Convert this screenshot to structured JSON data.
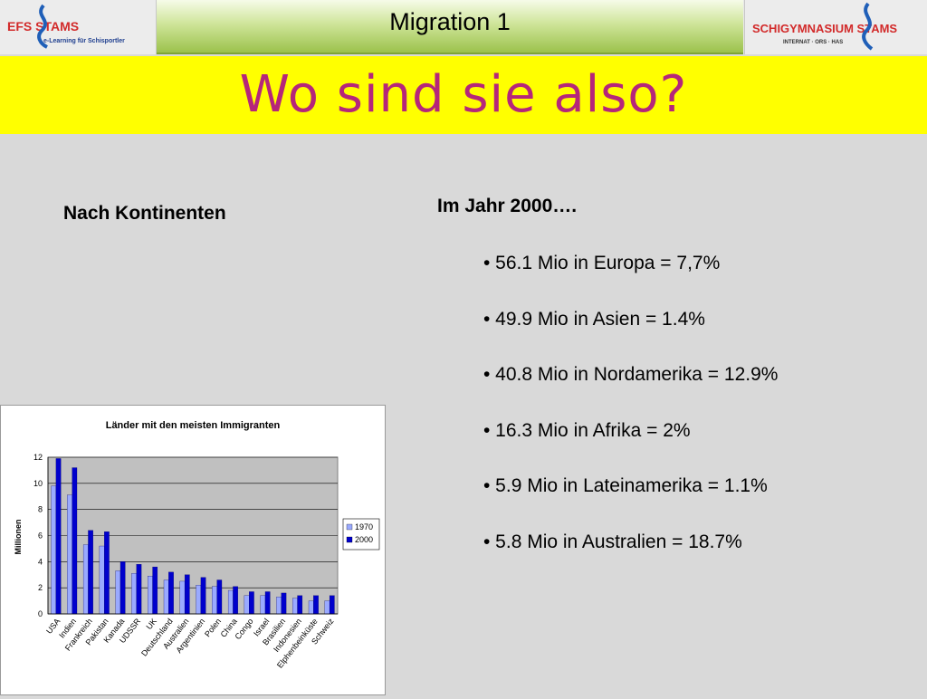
{
  "header": {
    "title": "Migration 1",
    "logo_left": {
      "main": "EFS STAMS",
      "tagline": "e-Learning für Schisportler"
    },
    "logo_right": {
      "main": "SCHIGYMNASIUM STAMS",
      "tagline": "INTERNAT · ORS · HAS"
    }
  },
  "headline": "Wo sind sie also?",
  "left": {
    "subheading": "Nach Kontinenten"
  },
  "right": {
    "subheading": "Im Jahr 2000….",
    "bullets": [
      "• 56.1 Mio in Europa = 7,7%",
      "• 49.9 Mio in Asien = 1.4%",
      "• 40.8 Mio in Nordamerika = 12.9%",
      "• 16.3 Mio in Afrika = 2%",
      "• 5.9 Mio in Lateinamerika = 1.1%",
      "• 5.8 Mio in Australien = 18.7%"
    ]
  },
  "colors": {
    "headline": "#b5267a",
    "band": "#ffff00",
    "series_1970": "#9aaaff",
    "series_2000": "#0000cc",
    "plot_bg": "#c0c0c0"
  },
  "chart_data": {
    "type": "bar",
    "title": "Länder mit den meisten Immigranten",
    "ylabel": "Millionen",
    "xlabel": "",
    "ylim": [
      0,
      12
    ],
    "yticks": [
      0,
      2,
      4,
      6,
      8,
      10,
      12
    ],
    "grid": true,
    "legend": "right",
    "categories": [
      "USA",
      "Indien",
      "Frankreich",
      "Pakistan",
      "Kanada",
      "UDSSR",
      "UK",
      "Deutschland",
      "Australien",
      "Argentinien",
      "Polen",
      "China",
      "Congo",
      "Israel",
      "Brasilien",
      "Indonesien",
      "Elphenbeinküste",
      "Schweiz"
    ],
    "series": [
      {
        "name": "1970",
        "values": [
          9.8,
          9.1,
          5.3,
          5.2,
          3.3,
          3.1,
          2.9,
          2.6,
          2.5,
          2.2,
          2.1,
          1.8,
          1.4,
          1.4,
          1.3,
          1.2,
          1.0,
          1.0
        ]
      },
      {
        "name": "2000",
        "values": [
          11.9,
          11.2,
          6.4,
          6.3,
          4.0,
          3.8,
          3.6,
          3.2,
          3.0,
          2.8,
          2.6,
          2.1,
          1.7,
          1.7,
          1.6,
          1.4,
          1.4,
          1.4
        ]
      }
    ]
  }
}
